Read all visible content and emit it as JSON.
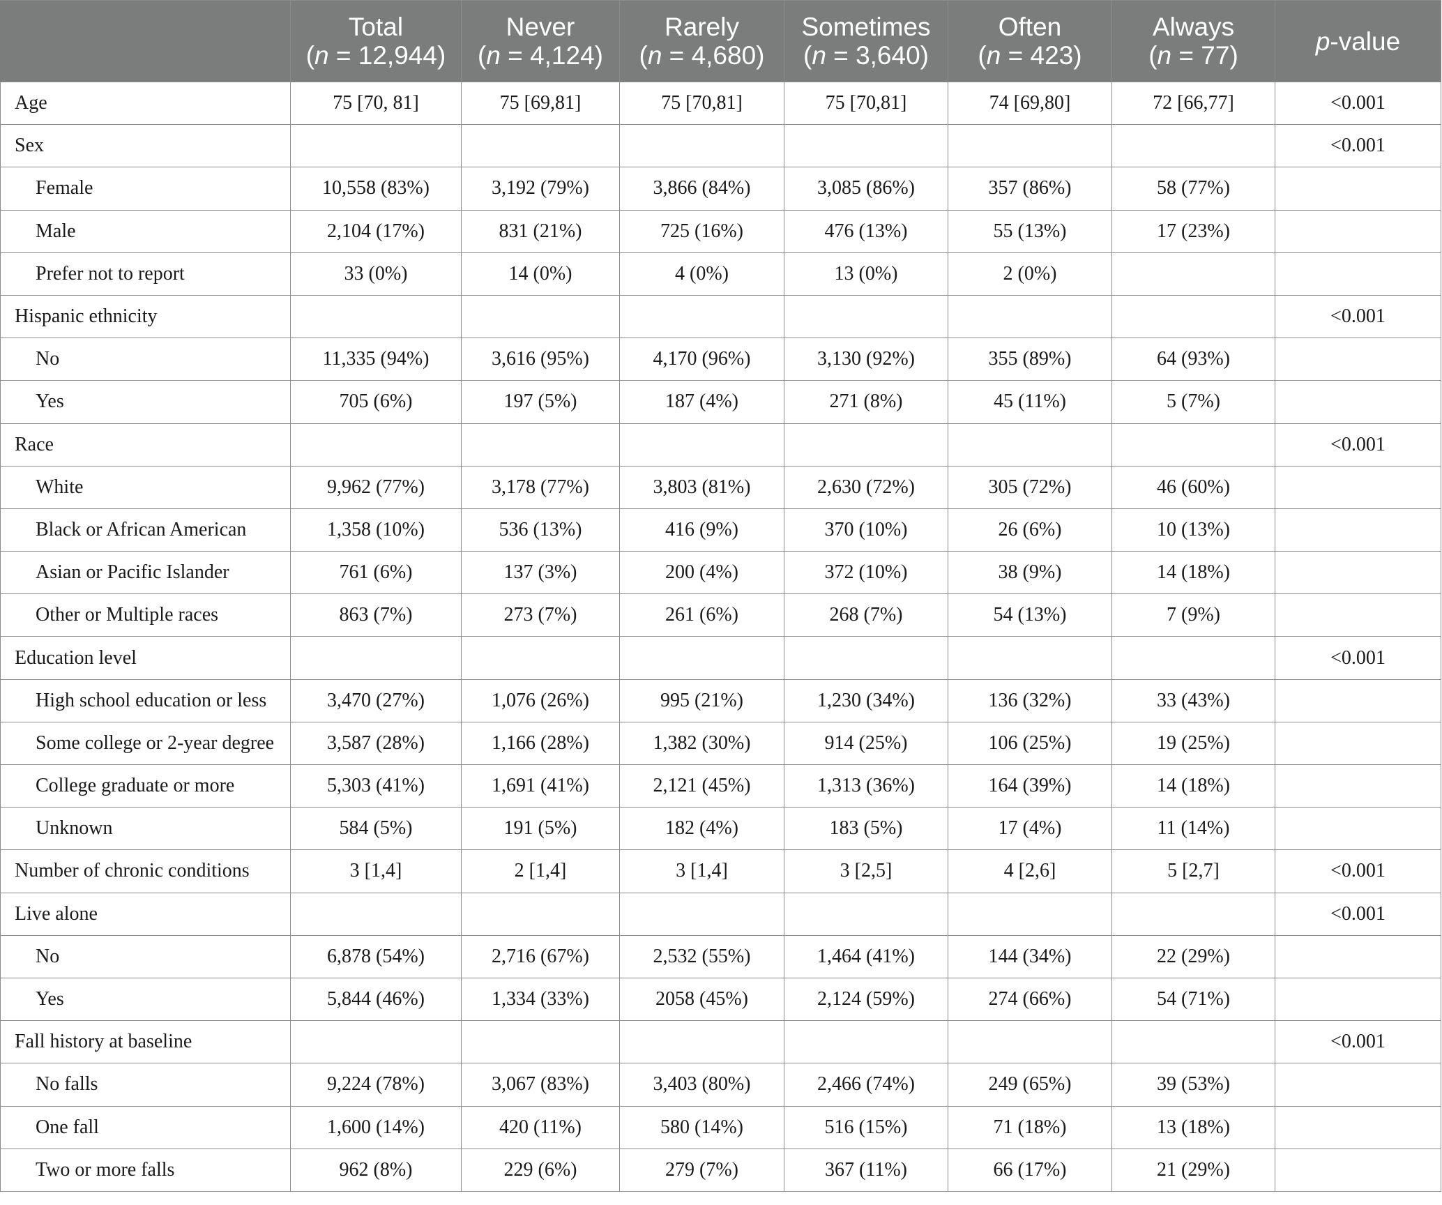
{
  "header": {
    "columns": [
      {
        "name": "Total",
        "n_prefix": "n",
        "n_text": " = 12,944"
      },
      {
        "name": "Never",
        "n_prefix": "n",
        "n_text": " = 4,124"
      },
      {
        "name": "Rarely",
        "n_prefix": "n",
        "n_text": " = 4,680"
      },
      {
        "name": "Sometimes",
        "n_prefix": "n",
        "n_text": " = 3,640"
      },
      {
        "name": "Often",
        "n_prefix": "n",
        "n_text": " = 423"
      },
      {
        "name": "Always",
        "n_prefix": "n",
        "n_text": " = 77"
      }
    ],
    "pvalue_italic": "p",
    "pvalue_rest": "-value"
  },
  "rows": [
    {
      "label": "Age",
      "sub": false,
      "values": [
        "75 [70, 81]",
        "75 [69,81]",
        "75 [70,81]",
        "75 [70,81]",
        "74 [69,80]",
        "72 [66,77]"
      ],
      "p": "<0.001"
    },
    {
      "label": "Sex",
      "sub": false,
      "values": [
        "",
        "",
        "",
        "",
        "",
        ""
      ],
      "p": "<0.001"
    },
    {
      "label": "Female",
      "sub": true,
      "values": [
        "10,558 (83%)",
        "3,192 (79%)",
        "3,866 (84%)",
        "3,085 (86%)",
        "357 (86%)",
        "58 (77%)"
      ],
      "p": ""
    },
    {
      "label": "Male",
      "sub": true,
      "values": [
        "2,104 (17%)",
        "831 (21%)",
        "725 (16%)",
        "476 (13%)",
        "55 (13%)",
        "17 (23%)"
      ],
      "p": ""
    },
    {
      "label": "Prefer not to report",
      "sub": true,
      "values": [
        "33 (0%)",
        "14 (0%)",
        "4 (0%)",
        "13 (0%)",
        "2 (0%)",
        ""
      ],
      "p": ""
    },
    {
      "label": "Hispanic ethnicity",
      "sub": false,
      "values": [
        "",
        "",
        "",
        "",
        "",
        ""
      ],
      "p": "<0.001"
    },
    {
      "label": "No",
      "sub": true,
      "values": [
        "11,335 (94%)",
        "3,616 (95%)",
        "4,170 (96%)",
        "3,130 (92%)",
        "355 (89%)",
        "64 (93%)"
      ],
      "p": ""
    },
    {
      "label": "Yes",
      "sub": true,
      "values": [
        "705 (6%)",
        "197 (5%)",
        "187 (4%)",
        "271 (8%)",
        "45 (11%)",
        "5 (7%)"
      ],
      "p": ""
    },
    {
      "label": "Race",
      "sub": false,
      "values": [
        "",
        "",
        "",
        "",
        "",
        ""
      ],
      "p": "<0.001"
    },
    {
      "label": "White",
      "sub": true,
      "values": [
        "9,962 (77%)",
        "3,178 (77%)",
        "3,803 (81%)",
        "2,630 (72%)",
        "305 (72%)",
        "46 (60%)"
      ],
      "p": ""
    },
    {
      "label": "Black or African American",
      "sub": true,
      "values": [
        "1,358 (10%)",
        "536 (13%)",
        "416 (9%)",
        "370 (10%)",
        "26 (6%)",
        "10 (13%)"
      ],
      "p": ""
    },
    {
      "label": "Asian or Pacific Islander",
      "sub": true,
      "values": [
        "761 (6%)",
        "137 (3%)",
        "200 (4%)",
        "372 (10%)",
        "38 (9%)",
        "14 (18%)"
      ],
      "p": ""
    },
    {
      "label": "Other or Multiple races",
      "sub": true,
      "values": [
        "863 (7%)",
        "273 (7%)",
        "261 (6%)",
        "268 (7%)",
        "54 (13%)",
        "7 (9%)"
      ],
      "p": ""
    },
    {
      "label": "Education level",
      "sub": false,
      "values": [
        "",
        "",
        "",
        "",
        "",
        ""
      ],
      "p": "<0.001"
    },
    {
      "label": "High school education or less",
      "sub": true,
      "values": [
        "3,470 (27%)",
        "1,076 (26%)",
        "995 (21%)",
        "1,230 (34%)",
        "136 (32%)",
        "33 (43%)"
      ],
      "p": ""
    },
    {
      "label": "Some college or 2-year degree",
      "sub": true,
      "values": [
        "3,587 (28%)",
        "1,166 (28%)",
        "1,382 (30%)",
        "914 (25%)",
        "106 (25%)",
        "19 (25%)"
      ],
      "p": ""
    },
    {
      "label": "College graduate or more",
      "sub": true,
      "values": [
        "5,303 (41%)",
        "1,691 (41%)",
        "2,121 (45%)",
        "1,313 (36%)",
        "164 (39%)",
        "14 (18%)"
      ],
      "p": ""
    },
    {
      "label": "Unknown",
      "sub": true,
      "values": [
        "584 (5%)",
        "191 (5%)",
        "182 (4%)",
        "183 (5%)",
        "17 (4%)",
        "11 (14%)"
      ],
      "p": ""
    },
    {
      "label": "Number of chronic conditions",
      "sub": false,
      "values": [
        "3 [1,4]",
        "2 [1,4]",
        "3 [1,4]",
        "3 [2,5]",
        "4 [2,6]",
        "5 [2,7]"
      ],
      "p": "<0.001"
    },
    {
      "label": "Live alone",
      "sub": false,
      "values": [
        "",
        "",
        "",
        "",
        "",
        ""
      ],
      "p": "<0.001"
    },
    {
      "label": "No",
      "sub": true,
      "values": [
        "6,878 (54%)",
        "2,716 (67%)",
        "2,532 (55%)",
        "1,464 (41%)",
        "144 (34%)",
        "22 (29%)"
      ],
      "p": ""
    },
    {
      "label": "Yes",
      "sub": true,
      "values": [
        "5,844 (46%)",
        "1,334 (33%)",
        "2058 (45%)",
        "2,124 (59%)",
        "274 (66%)",
        "54 (71%)"
      ],
      "p": ""
    },
    {
      "label": "Fall history at baseline",
      "sub": false,
      "values": [
        "",
        "",
        "",
        "",
        "",
        ""
      ],
      "p": "<0.001"
    },
    {
      "label": "No falls",
      "sub": true,
      "values": [
        "9,224 (78%)",
        "3,067 (83%)",
        "3,403 (80%)",
        "2,466 (74%)",
        "249 (65%)",
        "39 (53%)"
      ],
      "p": ""
    },
    {
      "label": "One fall",
      "sub": true,
      "values": [
        "1,600 (14%)",
        "420 (11%)",
        "580 (14%)",
        "516 (15%)",
        "71 (18%)",
        "13 (18%)"
      ],
      "p": ""
    },
    {
      "label": "Two or more falls",
      "sub": true,
      "values": [
        "962 (8%)",
        "229 (6%)",
        "279 (7%)",
        "367 (11%)",
        "66 (17%)",
        "21 (29%)"
      ],
      "p": ""
    }
  ]
}
